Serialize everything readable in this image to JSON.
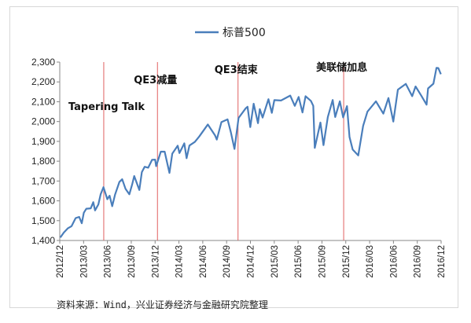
{
  "source_note": "资料来源：Wind，兴业证券经济与金融研究院整理",
  "chart_data": {
    "type": "line",
    "legend_position": "top-center",
    "grid": false,
    "series": [
      {
        "name": "标普500",
        "color": "#4a7ebb",
        "points": [
          [
            "2012-12-03",
            1415
          ],
          [
            "2012-12-17",
            1440
          ],
          [
            "2013-01-02",
            1462
          ],
          [
            "2013-01-16",
            1472
          ],
          [
            "2013-02-01",
            1513
          ],
          [
            "2013-02-15",
            1519
          ],
          [
            "2013-02-25",
            1487
          ],
          [
            "2013-03-05",
            1540
          ],
          [
            "2013-03-15",
            1560
          ],
          [
            "2013-04-01",
            1562
          ],
          [
            "2013-04-11",
            1593
          ],
          [
            "2013-04-18",
            1552
          ],
          [
            "2013-05-01",
            1582
          ],
          [
            "2013-05-10",
            1633
          ],
          [
            "2013-05-21",
            1669
          ],
          [
            "2013-06-05",
            1608
          ],
          [
            "2013-06-14",
            1626
          ],
          [
            "2013-06-24",
            1573
          ],
          [
            "2013-07-05",
            1631
          ],
          [
            "2013-07-22",
            1695
          ],
          [
            "2013-08-02",
            1709
          ],
          [
            "2013-08-15",
            1661
          ],
          [
            "2013-08-30",
            1633
          ],
          [
            "2013-09-10",
            1683
          ],
          [
            "2013-09-18",
            1725
          ],
          [
            "2013-10-08",
            1655
          ],
          [
            "2013-10-18",
            1745
          ],
          [
            "2013-10-29",
            1772
          ],
          [
            "2013-11-12",
            1767
          ],
          [
            "2013-11-27",
            1807
          ],
          [
            "2013-12-09",
            1808
          ],
          [
            "2013-12-13",
            1775
          ],
          [
            "2013-12-31",
            1848
          ],
          [
            "2014-01-15",
            1848
          ],
          [
            "2014-02-03",
            1741
          ],
          [
            "2014-02-14",
            1838
          ],
          [
            "2014-03-07",
            1878
          ],
          [
            "2014-03-14",
            1841
          ],
          [
            "2014-04-02",
            1890
          ],
          [
            "2014-04-11",
            1815
          ],
          [
            "2014-04-22",
            1879
          ],
          [
            "2014-05-13",
            1897
          ],
          [
            "2014-05-30",
            1924
          ],
          [
            "2014-06-20",
            1962
          ],
          [
            "2014-07-03",
            1985
          ],
          [
            "2014-07-31",
            1931
          ],
          [
            "2014-08-07",
            1909
          ],
          [
            "2014-08-25",
            1997
          ],
          [
            "2014-09-18",
            2011
          ],
          [
            "2014-10-01",
            1946
          ],
          [
            "2014-10-15",
            1862
          ],
          [
            "2014-10-31",
            2018
          ],
          [
            "2014-11-28",
            2067
          ],
          [
            "2014-12-05",
            2075
          ],
          [
            "2014-12-16",
            1972
          ],
          [
            "2014-12-29",
            2090
          ],
          [
            "2015-01-15",
            1992
          ],
          [
            "2015-01-22",
            2063
          ],
          [
            "2015-02-02",
            2020
          ],
          [
            "2015-02-25",
            2113
          ],
          [
            "2015-03-10",
            2044
          ],
          [
            "2015-03-20",
            2108
          ],
          [
            "2015-04-15",
            2106
          ],
          [
            "2015-05-21",
            2131
          ],
          [
            "2015-06-08",
            2079
          ],
          [
            "2015-06-23",
            2124
          ],
          [
            "2015-07-08",
            2046
          ],
          [
            "2015-07-20",
            2128
          ],
          [
            "2015-08-10",
            2104
          ],
          [
            "2015-08-19",
            2079
          ],
          [
            "2015-08-25",
            1867
          ],
          [
            "2015-09-16",
            1995
          ],
          [
            "2015-09-28",
            1881
          ],
          [
            "2015-10-15",
            2023
          ],
          [
            "2015-11-03",
            2109
          ],
          [
            "2015-11-13",
            2023
          ],
          [
            "2015-12-01",
            2102
          ],
          [
            "2015-12-14",
            2021
          ],
          [
            "2015-12-29",
            2078
          ],
          [
            "2016-01-08",
            1922
          ],
          [
            "2016-01-20",
            1859
          ],
          [
            "2016-02-11",
            1829
          ],
          [
            "2016-03-01",
            1978
          ],
          [
            "2016-03-18",
            2050
          ],
          [
            "2016-04-20",
            2102
          ],
          [
            "2016-05-19",
            2040
          ],
          [
            "2016-06-08",
            2119
          ],
          [
            "2016-06-27",
            2000
          ],
          [
            "2016-07-15",
            2161
          ],
          [
            "2016-08-15",
            2190
          ],
          [
            "2016-09-09",
            2128
          ],
          [
            "2016-09-22",
            2177
          ],
          [
            "2016-10-14",
            2132
          ],
          [
            "2016-11-04",
            2085
          ],
          [
            "2016-11-10",
            2167
          ],
          [
            "2016-12-01",
            2191
          ],
          [
            "2016-12-13",
            2271
          ],
          [
            "2016-12-20",
            2270
          ],
          [
            "2016-12-30",
            2239
          ]
        ]
      }
    ],
    "y_ticks": [
      "1,400",
      "1,500",
      "1,600",
      "1,700",
      "1,800",
      "1,900",
      "2,000",
      "2,100",
      "2,200",
      "2,300"
    ],
    "ylim": [
      1400,
      2300
    ],
    "x_ticks": [
      "2012/12",
      "2013/03",
      "2013/06",
      "2013/09",
      "2013/12",
      "2014/03",
      "2014/06",
      "2014/09",
      "2014/12",
      "2015/03",
      "2015/06",
      "2015/09",
      "2015/12",
      "2016/03",
      "2016/06",
      "2016/09",
      "2016/12"
    ],
    "xlim": [
      "2012-12-01",
      "2016-12-31"
    ],
    "annotations": [
      {
        "label": "Tapering Talk",
        "date": "2013-05-22",
        "line_color": "#e06060"
      },
      {
        "label": "QE3减量",
        "date": "2013-12-18",
        "line_color": "#e06060"
      },
      {
        "label": "QE3结束",
        "date": "2014-10-29",
        "line_color": "#e06060"
      },
      {
        "label": "美联储加息",
        "date": "2015-12-16",
        "line_color": "#e06060"
      }
    ]
  }
}
